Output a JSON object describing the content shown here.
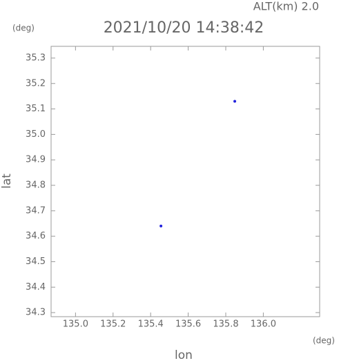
{
  "chart_data": {
    "type": "scatter",
    "title": "2021/10/20 14:38:42",
    "annotation": "ALT(km) 2.0",
    "y_unit": "(deg)",
    "x_unit": "(deg)",
    "xlabel": "lon",
    "ylabel": "lat",
    "x": [
      135.455,
      135.848
    ],
    "values": [
      34.64,
      35.13
    ],
    "color": "#2222dd",
    "xlim": [
      134.87,
      136.3
    ],
    "ylim": [
      34.284,
      35.346
    ],
    "xticks": [
      {
        "value": 135,
        "label": "135.0"
      },
      135.2,
      135.4,
      135.6,
      135.8,
      {
        "value": 136,
        "label": "136.0"
      }
    ],
    "yticks": [
      34.3,
      34.4,
      34.5,
      34.6,
      34.7,
      34.8,
      34.9,
      {
        "value": 35,
        "label": "35.0"
      },
      35.1,
      35.2,
      35.3
    ]
  }
}
